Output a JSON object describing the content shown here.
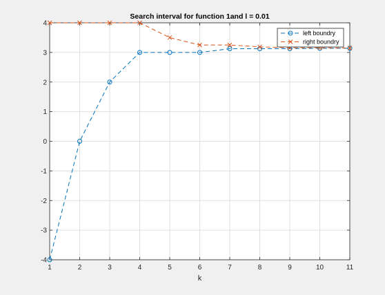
{
  "chart_data": {
    "type": "line",
    "title": "Search interval for function 1and l = 0.01",
    "xlabel": "k",
    "ylabel": "",
    "xlim": [
      1,
      11
    ],
    "ylim": [
      -4,
      4
    ],
    "xticks": [
      1,
      2,
      3,
      4,
      5,
      6,
      7,
      8,
      9,
      10,
      11
    ],
    "yticks": [
      -4,
      -3,
      -2,
      -1,
      0,
      1,
      2,
      3,
      4
    ],
    "grid": true,
    "legend_position": "top-right",
    "x": [
      1,
      2,
      3,
      4,
      5,
      6,
      7,
      8,
      9,
      10,
      11
    ],
    "series": [
      {
        "name": "left boundry",
        "marker": "o",
        "line_style": "dashed",
        "color": "#0072bd",
        "values": [
          -4,
          0,
          2,
          3,
          3,
          3,
          3.125,
          3.125,
          3.125,
          3.1406,
          3.1406
        ]
      },
      {
        "name": "right boundry",
        "marker": "x",
        "line_style": "dashed",
        "color": "#d95319",
        "values": [
          4,
          4,
          4,
          4,
          3.5,
          3.25,
          3.25,
          3.1875,
          3.1563,
          3.1563,
          3.1484
        ]
      }
    ]
  }
}
